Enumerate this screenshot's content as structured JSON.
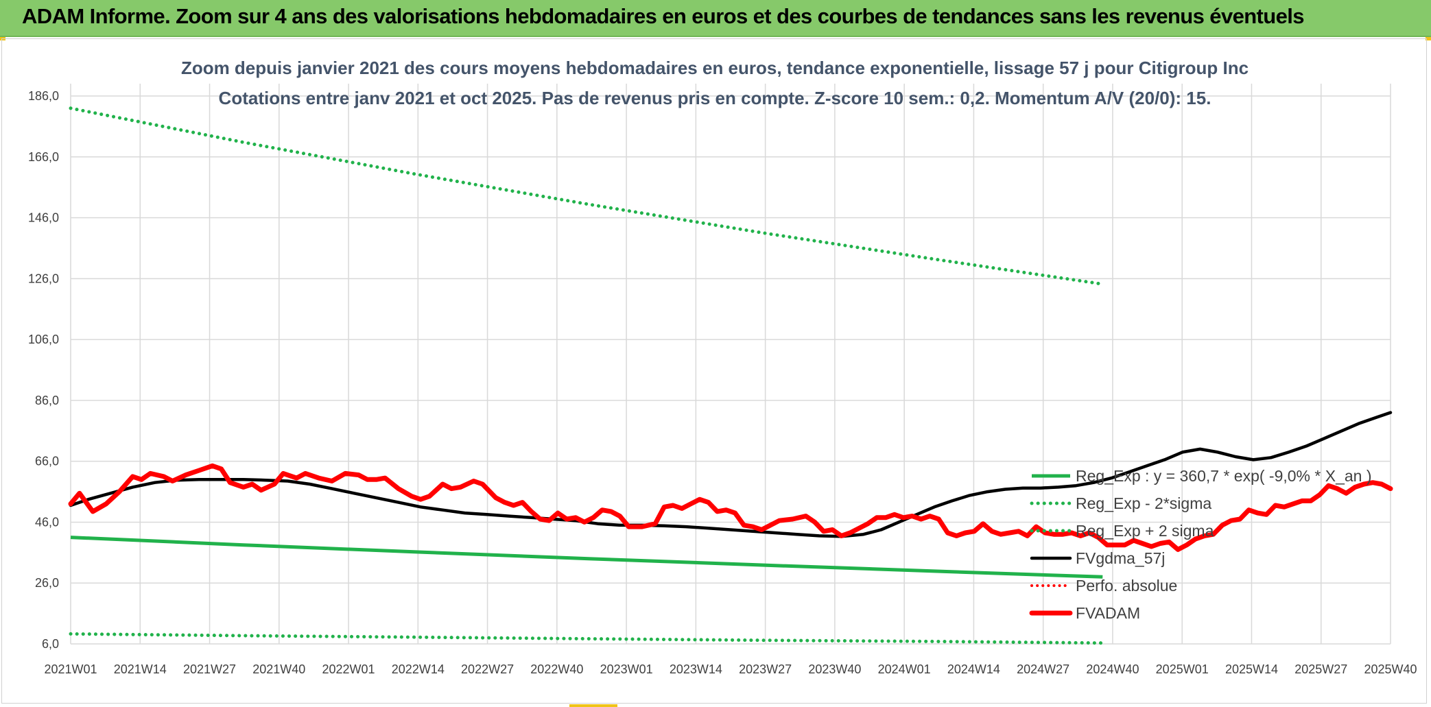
{
  "banner": {
    "title": "ADAM Informe. Zoom sur 4 ans des valorisations hebdomadaires en euros et des courbes de tendances sans les revenus éventuels"
  },
  "colors": {
    "green_line": "#21b24b",
    "green_dotted": "#21b24b",
    "black_line": "#000000",
    "red_line": "#ff0000",
    "red_dotted": "#ff0000",
    "grid": "#d9d9d9",
    "title_text": "#44546a",
    "banner_bg": "#86c96a"
  },
  "chart_data": {
    "type": "line",
    "title": "Zoom depuis janvier 2021 des cours moyens hebdomadaires en euros, tendance exponentielle, lissage 57 j pour Citigroup Inc",
    "subtitle": "Cotations entre janv 2021 et oct 2025. Pas de revenus pris en compte. Z-score 10 sem.: 0,2. Momentum A/V (20/0): 15.",
    "xlabel": "",
    "ylabel": "",
    "ylim": [
      6,
      186
    ],
    "y_ticks": [
      "186,0",
      "166,0",
      "146,0",
      "126,0",
      "106,0",
      "86,0",
      "66,0",
      "46,0",
      "26,0",
      "6,0"
    ],
    "y_tick_values": [
      186,
      166,
      146,
      126,
      106,
      86,
      66,
      46,
      26,
      6
    ],
    "x_ticks": [
      "2021W01",
      "2021W14",
      "2021W27",
      "2021W40",
      "2022W01",
      "2022W14",
      "2022W27",
      "2022W40",
      "2023W01",
      "2023W14",
      "2023W27",
      "2023W40",
      "2024W01",
      "2024W14",
      "2024W27",
      "2024W40",
      "2025W01",
      "2025W14",
      "2025W27",
      "2025W40"
    ],
    "grid": true,
    "legend_position": "right",
    "series": [
      {
        "name": "Reg_Exp : y = 360,7 * exp( -9,0% * X_an )",
        "style": "solid-green",
        "points": [
          [
            1,
            41
          ],
          [
            40,
            38.5
          ],
          [
            79,
            36.2
          ],
          [
            118,
            34
          ],
          [
            157,
            31.9
          ],
          [
            196,
            29.9
          ],
          [
            234,
            28
          ]
        ]
      },
      {
        "name": "Reg_Exp - 2*sigma",
        "style": "dotted-green",
        "points": [
          [
            1,
            9.3
          ],
          [
            40,
            8.7
          ],
          [
            79,
            8.2
          ],
          [
            118,
            7.7
          ],
          [
            157,
            7.2
          ],
          [
            196,
            6.8
          ],
          [
            234,
            6.3
          ]
        ]
      },
      {
        "name": "Reg_Exp + 2 sigma",
        "style": "dotted-green",
        "points": [
          [
            1,
            182
          ],
          [
            40,
            170.8
          ],
          [
            79,
            160.3
          ],
          [
            118,
            150.4
          ],
          [
            157,
            141.1
          ],
          [
            196,
            132.4
          ],
          [
            234,
            124.2
          ]
        ]
      },
      {
        "name": "FVgdma_57j",
        "style": "solid-black",
        "points": [
          [
            1,
            51.5
          ],
          [
            5,
            53.5
          ],
          [
            10,
            55.5
          ],
          [
            15,
            57.5
          ],
          [
            20,
            59
          ],
          [
            25,
            59.8
          ],
          [
            30,
            60
          ],
          [
            35,
            60
          ],
          [
            40,
            60
          ],
          [
            45,
            59.8
          ],
          [
            50,
            59.5
          ],
          [
            55,
            58.5
          ],
          [
            60,
            57
          ],
          [
            65,
            55.5
          ],
          [
            70,
            54
          ],
          [
            75,
            52.5
          ],
          [
            80,
            51
          ],
          [
            85,
            50
          ],
          [
            90,
            49
          ],
          [
            95,
            48.5
          ],
          [
            100,
            48
          ],
          [
            105,
            47.5
          ],
          [
            110,
            47
          ],
          [
            115,
            46.5
          ],
          [
            120,
            45.5
          ],
          [
            125,
            45
          ],
          [
            130,
            45
          ],
          [
            135,
            44.8
          ],
          [
            140,
            44.5
          ],
          [
            145,
            44
          ],
          [
            150,
            43.5
          ],
          [
            155,
            43
          ],
          [
            160,
            42.5
          ],
          [
            165,
            42
          ],
          [
            170,
            41.5
          ],
          [
            175,
            41.3
          ],
          [
            180,
            42
          ],
          [
            184,
            43.5
          ],
          [
            188,
            46
          ],
          [
            192,
            48.5
          ],
          [
            196,
            51
          ],
          [
            200,
            53
          ],
          [
            204,
            54.8
          ],
          [
            208,
            56
          ],
          [
            212,
            56.8
          ],
          [
            216,
            57.2
          ],
          [
            220,
            57.2
          ],
          [
            224,
            57.5
          ],
          [
            228,
            58
          ],
          [
            232,
            59
          ],
          [
            236,
            60.5
          ],
          [
            240,
            62.5
          ],
          [
            244,
            64.5
          ],
          [
            248,
            66.5
          ],
          [
            252,
            69
          ],
          [
            256,
            70
          ],
          [
            260,
            69
          ],
          [
            264,
            67.5
          ],
          [
            268,
            66.5
          ],
          [
            272,
            67.2
          ],
          [
            276,
            69
          ],
          [
            280,
            71
          ],
          [
            284,
            73.5
          ],
          [
            288,
            76
          ],
          [
            292,
            78.5
          ],
          [
            296,
            80.5
          ],
          [
            299,
            82
          ]
        ]
      },
      {
        "name": "Perfo. absolue",
        "style": "dotted-red",
        "points": []
      },
      {
        "name": "FVADAM",
        "style": "solid-red-thick",
        "points": [
          [
            1,
            52
          ],
          [
            3,
            55.5
          ],
          [
            6,
            49.5
          ],
          [
            9,
            52
          ],
          [
            12,
            56
          ],
          [
            15,
            61
          ],
          [
            17,
            60
          ],
          [
            19,
            62
          ],
          [
            22,
            61
          ],
          [
            24,
            59.5
          ],
          [
            27,
            61.5
          ],
          [
            30,
            63
          ],
          [
            33,
            64.5
          ],
          [
            35,
            63.5
          ],
          [
            37,
            59
          ],
          [
            40,
            57.5
          ],
          [
            42,
            58.5
          ],
          [
            44,
            56.5
          ],
          [
            47,
            58.5
          ],
          [
            49,
            62
          ],
          [
            52,
            60.5
          ],
          [
            54,
            62
          ],
          [
            57,
            60.5
          ],
          [
            60,
            59.5
          ],
          [
            63,
            62
          ],
          [
            66,
            61.5
          ],
          [
            68,
            60
          ],
          [
            70,
            60
          ],
          [
            72,
            60.5
          ],
          [
            75,
            57
          ],
          [
            78,
            54.5
          ],
          [
            80,
            53.5
          ],
          [
            82,
            54.5
          ],
          [
            85,
            58.5
          ],
          [
            87,
            57
          ],
          [
            89,
            57.5
          ],
          [
            92,
            59.5
          ],
          [
            94,
            58.5
          ],
          [
            97,
            54
          ],
          [
            99,
            52.5
          ],
          [
            101,
            51.5
          ],
          [
            103,
            52.5
          ],
          [
            105,
            49.5
          ],
          [
            107,
            47
          ],
          [
            109,
            46.5
          ],
          [
            111,
            49
          ],
          [
            113,
            47
          ],
          [
            115,
            47.5
          ],
          [
            117,
            46
          ],
          [
            119,
            47.5
          ],
          [
            121,
            50
          ],
          [
            123,
            49.5
          ],
          [
            125,
            48
          ],
          [
            127,
            44.5
          ],
          [
            130,
            44.5
          ],
          [
            133,
            45.5
          ],
          [
            135,
            51
          ],
          [
            137,
            51.5
          ],
          [
            139,
            50.5
          ],
          [
            141,
            52
          ],
          [
            143,
            53.5
          ],
          [
            145,
            52.5
          ],
          [
            147,
            49.5
          ],
          [
            149,
            50
          ],
          [
            151,
            49
          ],
          [
            153,
            45
          ],
          [
            155,
            44.5
          ],
          [
            157,
            43.5
          ],
          [
            159,
            45
          ],
          [
            161,
            46.5
          ],
          [
            164,
            47
          ],
          [
            167,
            48
          ],
          [
            169,
            46
          ],
          [
            171,
            43
          ],
          [
            173,
            43.5
          ],
          [
            175,
            41.5
          ],
          [
            177,
            42.5
          ],
          [
            179,
            44
          ],
          [
            181,
            45.5
          ],
          [
            183,
            47.5
          ],
          [
            185,
            47.5
          ],
          [
            187,
            48.5
          ],
          [
            189,
            47.5
          ],
          [
            191,
            48
          ],
          [
            193,
            47
          ],
          [
            195,
            48
          ],
          [
            197,
            47
          ],
          [
            199,
            42.5
          ],
          [
            201,
            41.5
          ],
          [
            203,
            42.5
          ],
          [
            205,
            43
          ],
          [
            207,
            45.5
          ],
          [
            209,
            43
          ],
          [
            211,
            42
          ],
          [
            213,
            42.5
          ],
          [
            215,
            43
          ],
          [
            217,
            41.5
          ],
          [
            219,
            44.5
          ],
          [
            221,
            42.5
          ],
          [
            223,
            42
          ],
          [
            225,
            42
          ],
          [
            227,
            42.5
          ],
          [
            229,
            41.5
          ],
          [
            231,
            42.5
          ],
          [
            233,
            41
          ],
          [
            235,
            38.5
          ],
          [
            237,
            38.5
          ],
          [
            239,
            38.5
          ],
          [
            241,
            40
          ],
          [
            243,
            39
          ],
          [
            245,
            38
          ],
          [
            247,
            39
          ],
          [
            249,
            39.5
          ],
          [
            251,
            37
          ],
          [
            253,
            38.5
          ],
          [
            255,
            40.5
          ],
          [
            257,
            41.5
          ],
          [
            259,
            42
          ],
          [
            261,
            45
          ],
          [
            263,
            46.5
          ],
          [
            265,
            47
          ],
          [
            267,
            50
          ],
          [
            269,
            49
          ],
          [
            271,
            48.5
          ],
          [
            273,
            51.5
          ],
          [
            275,
            51
          ],
          [
            277,
            52
          ],
          [
            279,
            53
          ],
          [
            281,
            53
          ],
          [
            283,
            55
          ],
          [
            285,
            58
          ],
          [
            287,
            57
          ],
          [
            289,
            55.5
          ],
          [
            291,
            57.5
          ],
          [
            293,
            58.5
          ],
          [
            295,
            59
          ],
          [
            297,
            58.5
          ],
          [
            299,
            57
          ]
        ]
      }
    ]
  },
  "legend": {
    "items": [
      {
        "label": "Reg_Exp : y = 360,7 * exp( -9,0% *  X_an )",
        "style": "solid-green"
      },
      {
        "label": "Reg_Exp - 2*sigma",
        "style": "dotted-green"
      },
      {
        "label": "Reg_Exp + 2 sigma",
        "style": "dotted-green"
      },
      {
        "label": "FVgdma_57j",
        "style": "solid-black"
      },
      {
        "label": "Perfo. absolue",
        "style": "dotted-red"
      },
      {
        "label": "FVADAM",
        "style": "solid-red-thick"
      }
    ]
  }
}
